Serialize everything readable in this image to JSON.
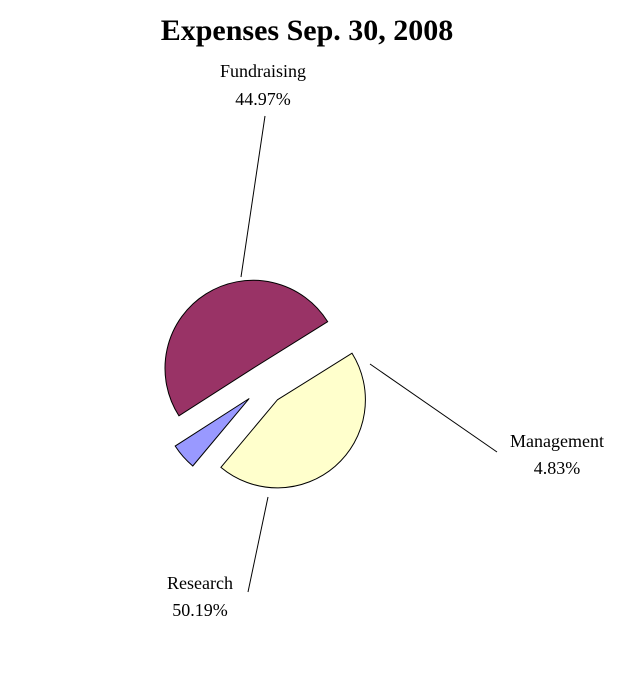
{
  "chart_data": {
    "type": "pie",
    "title": "Expenses Sep. 30, 2008",
    "slices": [
      {
        "label": "Fundraising",
        "value": 44.97,
        "value_label": "44.97%",
        "color": "#ffffcc"
      },
      {
        "label": "Management",
        "value": 4.83,
        "value_label": "4.83%",
        "color": "#9999ff"
      },
      {
        "label": "Research",
        "value": 50.19,
        "value_label": "50.19%",
        "color": "#993366"
      }
    ],
    "exploded": true,
    "legend": "none"
  }
}
